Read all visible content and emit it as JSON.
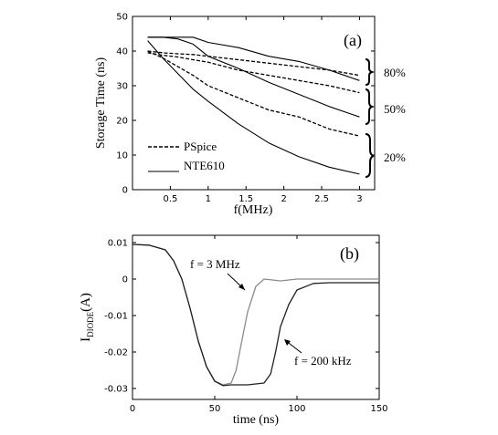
{
  "chart_data": [
    {
      "type": "line",
      "panel_label": "(a)",
      "xlabel": "f(MHz)",
      "ylabel": "Storage Time (ns)",
      "xlim": [
        0,
        3.2
      ],
      "ylim": [
        0,
        50
      ],
      "xticks": [
        0.5,
        1,
        1.5,
        2,
        2.5,
        3
      ],
      "xtick_labels": [
        "0.5",
        "1",
        "1.5",
        "2",
        "2.5",
        "3"
      ],
      "yticks": [
        0,
        10,
        20,
        30,
        40,
        50
      ],
      "ytick_labels": [
        "0",
        "10",
        "20",
        "30",
        "40",
        "50"
      ],
      "legend": [
        {
          "label": "PSpice",
          "style": "dashed"
        },
        {
          "label": "NTE610",
          "style": "solid"
        }
      ],
      "series": [
        {
          "style": "dashed",
          "group": "80%",
          "x": [
            0.2,
            0.4,
            0.6,
            0.8,
            1.0,
            1.4,
            1.8,
            2.2,
            2.6,
            3.0
          ],
          "y": [
            40,
            39.5,
            39.2,
            39,
            38.5,
            37.5,
            36.5,
            35.5,
            34.5,
            33
          ]
        },
        {
          "style": "solid",
          "group": "80%",
          "x": [
            0.2,
            0.4,
            0.6,
            0.8,
            1.0,
            1.4,
            1.8,
            2.2,
            2.6,
            3.0
          ],
          "y": [
            44,
            44,
            44,
            44,
            42.5,
            41,
            38.5,
            37,
            34.5,
            31.5
          ]
        },
        {
          "style": "dashed",
          "group": "50%",
          "x": [
            0.2,
            0.4,
            0.6,
            0.8,
            1.0,
            1.4,
            1.8,
            2.2,
            2.6,
            3.0
          ],
          "y": [
            39.5,
            38.8,
            38.3,
            37.5,
            36.8,
            34.5,
            33,
            31.5,
            30,
            28
          ]
        },
        {
          "style": "solid",
          "group": "50%",
          "x": [
            0.2,
            0.4,
            0.6,
            0.8,
            1.0,
            1.4,
            1.8,
            2.2,
            2.6,
            3.0
          ],
          "y": [
            44,
            44,
            43.5,
            42,
            38.5,
            35,
            31,
            27.5,
            24,
            21
          ]
        },
        {
          "style": "dashed",
          "group": "20%",
          "x": [
            0.2,
            0.4,
            0.6,
            0.8,
            1.0,
            1.4,
            1.8,
            2.2,
            2.6,
            3.0
          ],
          "y": [
            40,
            38,
            35.5,
            33,
            30,
            26.5,
            23,
            21,
            17.5,
            15.5
          ]
        },
        {
          "style": "solid",
          "group": "20%",
          "x": [
            0.2,
            0.4,
            0.6,
            0.8,
            1.0,
            1.4,
            1.8,
            2.2,
            2.6,
            3.0
          ],
          "y": [
            43,
            38,
            33.5,
            29,
            25.5,
            19,
            13.5,
            9.5,
            6.5,
            4.5
          ]
        }
      ],
      "group_labels": [
        "80%",
        "50%",
        "20%"
      ]
    },
    {
      "type": "line",
      "panel_label": "(b)",
      "xlabel": "time (ns)",
      "ylabel_main": "I",
      "ylabel_sub": "DIODE",
      "ylabel_unit": "(A)",
      "xlim": [
        0,
        150
      ],
      "ylim": [
        -0.033,
        0.012
      ],
      "xticks": [
        0,
        50,
        100,
        150
      ],
      "xtick_labels": [
        "0",
        "50",
        "100",
        "150"
      ],
      "yticks": [
        0.01,
        0,
        -0.01,
        -0.02,
        -0.03
      ],
      "ytick_labels": [
        "0.01",
        "0",
        "-0.01",
        "-0.02",
        "-0.03"
      ],
      "series": [
        {
          "label": "f = 3 MHz",
          "color": "#8c8c8c",
          "x": [
            0,
            10,
            20,
            25,
            30,
            35,
            40,
            45,
            50,
            55,
            60,
            63,
            66,
            70,
            75,
            80,
            90,
            100,
            120,
            150
          ],
          "y": [
            0.0095,
            0.0093,
            0.008,
            0.005,
            0.0,
            -0.008,
            -0.017,
            -0.024,
            -0.028,
            -0.029,
            -0.0285,
            -0.025,
            -0.018,
            -0.009,
            -0.002,
            0.0,
            -0.0005,
            0.0,
            0.0,
            0.0
          ]
        },
        {
          "label": "f = 200 kHz",
          "color": "#222222",
          "x": [
            0,
            10,
            20,
            25,
            30,
            35,
            40,
            45,
            50,
            55,
            60,
            70,
            80,
            84,
            87,
            90,
            95,
            100,
            110,
            120,
            150
          ],
          "y": [
            0.0095,
            0.0093,
            0.008,
            0.005,
            0.0,
            -0.008,
            -0.017,
            -0.024,
            -0.028,
            -0.0292,
            -0.029,
            -0.029,
            -0.0285,
            -0.026,
            -0.02,
            -0.013,
            -0.007,
            -0.003,
            -0.0012,
            -0.001,
            -0.001
          ]
        }
      ]
    }
  ]
}
